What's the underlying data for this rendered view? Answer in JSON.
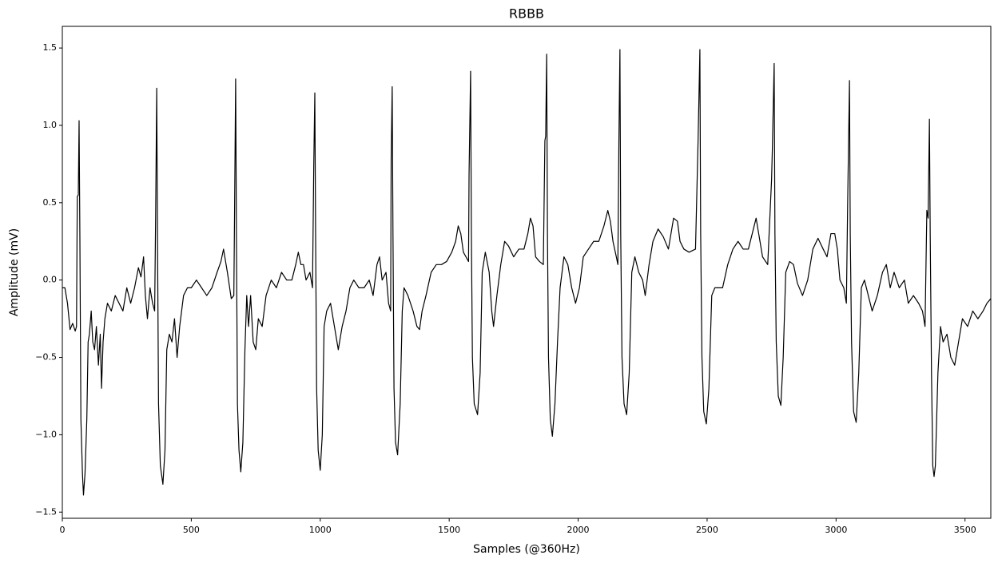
{
  "chart_data": {
    "type": "line",
    "title": "RBBB",
    "xlabel": "Samples (@360Hz)",
    "ylabel": "Amplitude (mV)",
    "x": [
      0,
      10,
      20,
      30,
      40,
      50,
      55,
      58,
      62,
      65,
      68,
      72,
      78,
      82,
      88,
      95,
      100,
      105,
      112,
      118,
      125,
      132,
      140,
      147,
      152,
      158,
      165,
      175,
      190,
      205,
      220,
      235,
      250,
      265,
      280,
      295,
      305,
      315,
      322,
      330,
      340,
      350,
      358,
      362,
      366,
      369,
      373,
      380,
      390,
      398,
      405,
      415,
      425,
      435,
      445,
      455,
      470,
      485,
      500,
      520,
      540,
      560,
      580,
      600,
      615,
      625,
      640,
      655,
      665,
      668,
      672,
      675,
      679,
      685,
      692,
      700,
      708,
      715,
      722,
      730,
      740,
      750,
      760,
      775,
      790,
      810,
      830,
      850,
      870,
      890,
      905,
      915,
      925,
      935,
      945,
      960,
      970,
      975,
      979,
      982,
      986,
      992,
      1000,
      1008,
      1015,
      1025,
      1040,
      1055,
      1070,
      1085,
      1100,
      1115,
      1130,
      1150,
      1170,
      1190,
      1205,
      1220,
      1230,
      1240,
      1255,
      1265,
      1273,
      1275,
      1279,
      1282,
      1286,
      1292,
      1300,
      1310,
      1318,
      1325,
      1340,
      1360,
      1375,
      1385,
      1395,
      1410,
      1430,
      1450,
      1470,
      1490,
      1510,
      1525,
      1535,
      1545,
      1555,
      1565,
      1575,
      1577,
      1583,
      1586,
      1590,
      1597,
      1610,
      1620,
      1628,
      1640,
      1655,
      1665,
      1672,
      1685,
      1700,
      1715,
      1730,
      1750,
      1770,
      1790,
      1805,
      1815,
      1825,
      1835,
      1850,
      1865,
      1871,
      1874,
      1878,
      1881,
      1885,
      1892,
      1900,
      1910,
      1920,
      1930,
      1945,
      1960,
      1975,
      1990,
      2005,
      2020,
      2040,
      2060,
      2080,
      2100,
      2115,
      2125,
      2135,
      2148,
      2154,
      2158,
      2162,
      2165,
      2170,
      2178,
      2188,
      2198,
      2208,
      2220,
      2235,
      2250,
      2260,
      2275,
      2290,
      2310,
      2330,
      2350,
      2370,
      2385,
      2395,
      2410,
      2430,
      2455,
      2465,
      2472,
      2475,
      2480,
      2487,
      2497,
      2507,
      2518,
      2530,
      2545,
      2560,
      2580,
      2600,
      2620,
      2640,
      2660,
      2675,
      2690,
      2700,
      2715,
      2735,
      2750,
      2753,
      2760,
      2763,
      2768,
      2776,
      2786,
      2795,
      2805,
      2820,
      2835,
      2850,
      2870,
      2890,
      2910,
      2930,
      2950,
      2965,
      2980,
      2995,
      3005,
      3015,
      3030,
      3040,
      3045,
      3052,
      3055,
      3060,
      3068,
      3078,
      3088,
      3098,
      3110,
      3125,
      3140,
      3160,
      3180,
      3195,
      3210,
      3225,
      3245,
      3265,
      3280,
      3300,
      3320,
      3335,
      3345,
      3352,
      3357,
      3362,
      3365,
      3370,
      3375,
      3380,
      3385,
      3395,
      3405,
      3415,
      3430,
      3445,
      3460,
      3475,
      3490,
      3510,
      3530,
      3550,
      3570,
      3585,
      3600
    ],
    "values": [
      -0.05,
      -0.05,
      -0.15,
      -0.32,
      -0.28,
      -0.33,
      -0.3,
      0.54,
      0.55,
      1.03,
      0.3,
      -0.9,
      -1.25,
      -1.39,
      -1.25,
      -0.9,
      -0.4,
      -0.35,
      -0.2,
      -0.4,
      -0.45,
      -0.3,
      -0.55,
      -0.35,
      -0.7,
      -0.4,
      -0.25,
      -0.15,
      -0.2,
      -0.1,
      -0.15,
      -0.2,
      -0.05,
      -0.15,
      -0.05,
      0.08,
      0.02,
      0.15,
      -0.1,
      -0.25,
      -0.05,
      -0.15,
      -0.2,
      0.45,
      1.24,
      0.3,
      -0.8,
      -1.2,
      -1.32,
      -1.1,
      -0.45,
      -0.35,
      -0.4,
      -0.25,
      -0.5,
      -0.3,
      -0.1,
      -0.05,
      -0.05,
      0.0,
      -0.05,
      -0.1,
      -0.05,
      0.05,
      0.12,
      0.2,
      0.05,
      -0.12,
      -0.1,
      0.47,
      1.3,
      0.3,
      -0.8,
      -1.1,
      -1.24,
      -1.05,
      -0.45,
      -0.1,
      -0.3,
      -0.1,
      -0.4,
      -0.45,
      -0.25,
      -0.3,
      -0.1,
      0.0,
      -0.05,
      0.05,
      0.0,
      0.0,
      0.1,
      0.18,
      0.1,
      0.1,
      0.0,
      0.05,
      -0.05,
      0.75,
      1.21,
      0.3,
      -0.7,
      -1.1,
      -1.23,
      -1.0,
      -0.3,
      -0.2,
      -0.15,
      -0.3,
      -0.45,
      -0.3,
      -0.2,
      -0.05,
      0.0,
      -0.05,
      -0.05,
      0.0,
      -0.1,
      0.1,
      0.15,
      0.0,
      0.05,
      -0.15,
      -0.2,
      0.78,
      1.25,
      0.3,
      -0.7,
      -1.05,
      -1.13,
      -0.8,
      -0.2,
      -0.05,
      -0.1,
      -0.2,
      -0.3,
      -0.32,
      -0.2,
      -0.1,
      0.05,
      0.1,
      0.1,
      0.12,
      0.18,
      0.25,
      0.35,
      0.3,
      0.18,
      0.15,
      0.12,
      0.68,
      1.35,
      0.3,
      -0.5,
      -0.8,
      -0.87,
      -0.6,
      0.05,
      0.18,
      0.05,
      -0.2,
      -0.3,
      -0.1,
      0.1,
      0.25,
      0.22,
      0.15,
      0.2,
      0.2,
      0.3,
      0.4,
      0.35,
      0.15,
      0.12,
      0.1,
      0.9,
      0.93,
      1.46,
      0.3,
      -0.5,
      -0.9,
      -1.01,
      -0.8,
      -0.4,
      -0.05,
      0.15,
      0.1,
      -0.05,
      -0.15,
      -0.05,
      0.15,
      0.2,
      0.25,
      0.25,
      0.35,
      0.45,
      0.38,
      0.25,
      0.15,
      0.1,
      0.9,
      1.49,
      0.3,
      -0.5,
      -0.8,
      -0.87,
      -0.6,
      0.05,
      0.15,
      0.05,
      0.0,
      -0.1,
      0.1,
      0.25,
      0.33,
      0.28,
      0.2,
      0.4,
      0.38,
      0.25,
      0.2,
      0.18,
      0.2,
      0.9,
      1.49,
      0.3,
      -0.5,
      -0.85,
      -0.93,
      -0.7,
      -0.1,
      -0.05,
      -0.05,
      -0.05,
      0.1,
      0.2,
      0.25,
      0.2,
      0.2,
      0.3,
      0.4,
      0.3,
      0.15,
      0.1,
      0.65,
      0.85,
      1.4,
      0.3,
      -0.4,
      -0.75,
      -0.81,
      -0.5,
      0.05,
      0.12,
      0.1,
      -0.02,
      -0.1,
      0.0,
      0.2,
      0.27,
      0.2,
      0.15,
      0.3,
      0.3,
      0.2,
      0.0,
      -0.05,
      -0.15,
      0.5,
      1.29,
      0.3,
      -0.4,
      -0.85,
      -0.92,
      -0.6,
      -0.05,
      0.0,
      -0.1,
      -0.2,
      -0.1,
      0.05,
      0.1,
      -0.05,
      0.05,
      -0.05,
      0.0,
      -0.15,
      -0.1,
      -0.15,
      -0.2,
      -0.3,
      0.45,
      0.4,
      1.04,
      0.3,
      -0.6,
      -1.2,
      -1.27,
      -1.2,
      -0.6,
      -0.3,
      -0.4,
      -0.35,
      -0.5,
      -0.55,
      -0.4,
      -0.25,
      -0.3,
      -0.2,
      -0.25,
      -0.2,
      -0.15,
      -0.12
    ],
    "color": "#000000",
    "xlim": [
      0,
      3600
    ],
    "xticks": [
      0,
      500,
      1000,
      1500,
      2000,
      2500,
      3000,
      3500
    ],
    "ylim": [
      -1.54,
      1.64
    ],
    "yticks": [
      {
        "value": -1.5,
        "label": "−1.5"
      },
      {
        "value": -1.0,
        "label": "−1.0"
      },
      {
        "value": -0.5,
        "label": "−0.5"
      },
      {
        "value": 0,
        "label": "0.0"
      },
      0.5,
      {
        "value": 1.0,
        "label": "1.0"
      },
      1.5
    ],
    "grid": false
  }
}
